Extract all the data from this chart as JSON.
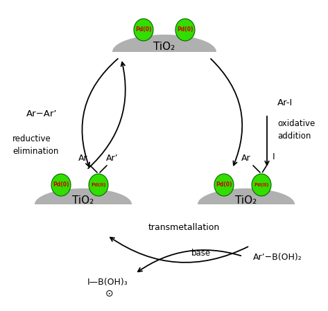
{
  "bg_color": "#ffffff",
  "tio2_color": "#b0b0b0",
  "pd0_color": "#33dd00",
  "pdII_color": "#33dd00",
  "pd_text_color": "#cc0000",
  "arrow_color": "#000000",
  "top_label": "TiO₂",
  "left_label": "TiO₂",
  "right_label": "TiO₂",
  "product_label": "Ar−Ar’",
  "reductive_line1": "reductive",
  "reductive_line2": "elimination",
  "oxidative_line1": "oxidative",
  "oxidative_line2": "addition",
  "arl_label": "Ar-I",
  "transmet_label": "transmetallation",
  "base_label": "base",
  "boronate_label": "Ar’−B(OH)₂",
  "bottom_product": "I—B(OH)₃",
  "minus_label": "⊙",
  "ar_label": "Ar",
  "arpr_label": "Ar’",
  "i_label": "I"
}
